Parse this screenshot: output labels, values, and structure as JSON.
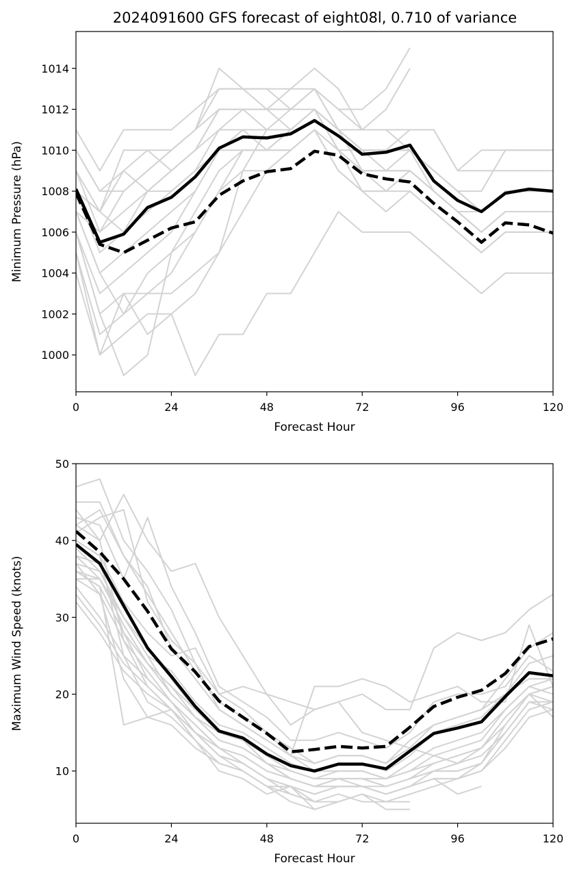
{
  "chart_data": [
    {
      "type": "line",
      "title": "2024091600 GFS forecast of eight08l, 0.710 of variance",
      "xlabel": "Forecast Hour",
      "ylabel": "Minimum Pressure (hPa)",
      "xlim": [
        0,
        120
      ],
      "ylim": [
        998.2,
        1015.8
      ],
      "xticks": [
        0,
        24,
        48,
        72,
        96,
        120
      ],
      "yticks": [
        1000,
        1002,
        1004,
        1006,
        1008,
        1010,
        1012,
        1014
      ],
      "grid": false,
      "colors": {
        "ensemble": "#d3d3d3",
        "solid": "#000000",
        "dashed": "#000000"
      },
      "x": [
        0,
        6,
        12,
        18,
        24,
        30,
        36,
        42,
        48,
        54,
        60,
        66,
        72,
        78,
        84,
        90,
        96,
        102,
        108,
        114,
        120
      ],
      "solid_series": [
        1008.1,
        1005.5,
        1005.9,
        1007.2,
        1007.7,
        1008.7,
        1010.1,
        1010.65,
        1010.6,
        1010.8,
        1011.45,
        1010.7,
        1009.8,
        1009.9,
        1010.25,
        1008.5,
        1007.55,
        1007.0,
        1007.9,
        1008.1,
        1008.0
      ],
      "dashed_series": [
        1007.9,
        1005.4,
        1005.0,
        1005.6,
        1006.2,
        1006.5,
        1007.8,
        1008.5,
        1008.95,
        1009.1,
        1009.95,
        1009.75,
        1008.85,
        1008.6,
        1008.45,
        1007.4,
        1006.5,
        1005.5,
        1006.45,
        1006.35,
        1005.95
      ],
      "ensemble": [
        [
          1011,
          1009,
          1011,
          1011,
          1011,
          1012,
          1013,
          1013,
          1013,
          1013,
          1013,
          1012,
          1012,
          1013,
          1015
        ],
        [
          1010,
          1008,
          1009,
          1010,
          1010,
          1011,
          1014,
          1013,
          1012,
          1012,
          1013,
          1012,
          1011,
          1012,
          1014
        ],
        [
          1009,
          1006,
          1008,
          1009,
          1010,
          1011,
          1012,
          1012,
          1012,
          1013,
          1014,
          1013,
          1011,
          1011,
          1011,
          1011,
          1009,
          1010,
          1010,
          1010,
          1010
        ],
        [
          1008,
          1007,
          1010,
          1010,
          1009,
          1010,
          1012,
          1012,
          1012,
          1012,
          1013,
          1011,
          1010,
          1010,
          1011,
          1011,
          1009,
          1009,
          1009,
          1009,
          1009
        ],
        [
          1010,
          1008,
          1008,
          1009,
          1010,
          1011,
          1013,
          1013,
          1013,
          1012,
          1012,
          1011,
          1011,
          1011,
          1010,
          1009,
          1008,
          1008,
          1010,
          1010,
          1010
        ],
        [
          1007,
          1006,
          1007,
          1008,
          1009,
          1010,
          1011,
          1012,
          1011,
          1011,
          1012,
          1011,
          1010,
          1010,
          1010,
          1009,
          1008,
          1007,
          1008,
          1008,
          1008
        ],
        [
          1008,
          1005,
          1006,
          1007,
          1008,
          1009,
          1010,
          1011,
          1011,
          1011,
          1012,
          1010,
          1010,
          1009,
          1009,
          1008,
          1007,
          1006,
          1007,
          1007,
          1007
        ],
        [
          1007,
          1004,
          1005,
          1006,
          1007,
          1008,
          1010,
          1010,
          1010,
          1010,
          1011,
          1010,
          1009,
          1009,
          1009,
          1008,
          1007,
          1006,
          1007,
          1007,
          1007
        ],
        [
          1006,
          1003,
          1004,
          1005,
          1006,
          1008,
          1010,
          1011,
          1010,
          1011,
          1012,
          1011,
          1010,
          1010,
          1010,
          1008,
          1007,
          1006,
          1007,
          1007,
          1007
        ],
        [
          1006,
          1002,
          1003,
          1003,
          1004,
          1006,
          1008,
          1010,
          1010,
          1010,
          1011,
          1009,
          1008,
          1008,
          1009,
          1008,
          1007,
          1006,
          1007,
          1007,
          1007
        ],
        [
          1007,
          1004,
          1002,
          1004,
          1005,
          1007,
          1009,
          1010,
          1010,
          1011,
          1012,
          1010,
          1009,
          1009,
          1009,
          1008,
          1007,
          1007,
          1008,
          1008,
          1008
        ],
        [
          1005,
          1001,
          1002,
          1003,
          1003,
          1004,
          1005,
          1009,
          1011,
          1012,
          1013,
          1011,
          1009,
          1009,
          1010,
          1009,
          1008,
          1007,
          1008,
          1008,
          1008
        ],
        [
          1004,
          1000,
          1001,
          1002,
          1002,
          999,
          1001,
          1001,
          1003,
          1003,
          1005,
          1007,
          1006,
          1006,
          1006,
          1005,
          1004,
          1003,
          1004,
          1004,
          1004
        ],
        [
          1005,
          1000,
          1003,
          1001,
          1002,
          1003,
          1005,
          1007,
          1009,
          1010,
          1011,
          1009,
          1008,
          1007,
          1008,
          1007,
          1006,
          1005,
          1006,
          1006,
          1006
        ],
        [
          1006,
          1002,
          999,
          1000,
          1005,
          1006,
          1008,
          1009,
          1009,
          1010,
          1011,
          1010,
          1008,
          1008,
          1008,
          1007,
          1006,
          1005,
          1006,
          1006,
          1006
        ],
        [
          1008,
          1007,
          1006,
          1008,
          1008,
          1009,
          1011,
          1011,
          1011,
          1011,
          1012,
          1010,
          1009,
          1008,
          1009,
          1008,
          1007,
          1006,
          1007,
          1007,
          1007
        ],
        [
          1009,
          1007,
          1009,
          1008,
          1009,
          1010,
          1012,
          1012,
          1012,
          1011,
          1012,
          1011,
          1010,
          1010,
          1010,
          1009,
          1008,
          1007,
          1008,
          1008,
          1008
        ]
      ]
    },
    {
      "type": "line",
      "title": "",
      "xlabel": "Forecast Hour",
      "ylabel": "Maximum Wind Speed (knots)",
      "xlim": [
        0,
        120
      ],
      "ylim": [
        3.2,
        50
      ],
      "xticks": [
        0,
        24,
        48,
        72,
        96,
        120
      ],
      "yticks": [
        10,
        20,
        30,
        40,
        50
      ],
      "grid": false,
      "colors": {
        "ensemble": "#d3d3d3",
        "solid": "#000000",
        "dashed": "#000000"
      },
      "x": [
        0,
        6,
        12,
        18,
        24,
        30,
        36,
        42,
        48,
        54,
        60,
        66,
        72,
        78,
        84,
        90,
        96,
        102,
        108,
        114,
        120
      ],
      "solid_series": [
        39.5,
        37,
        31.5,
        26,
        22.3,
        18.4,
        15.2,
        14.3,
        12.2,
        10.7,
        10,
        10.9,
        10.9,
        10.3,
        12.6,
        14.9,
        15.6,
        16.4,
        19.7,
        22.8,
        22.4
      ],
      "dashed_series": [
        41.2,
        38.5,
        35,
        30.8,
        25.9,
        22.9,
        19.1,
        17,
        14.9,
        12.5,
        12.8,
        13.2,
        13,
        13.2,
        15.7,
        18.4,
        19.6,
        20.5,
        22.7,
        26.2,
        27.2
      ],
      "ensemble": [
        [
          47,
          48,
          40,
          36,
          31,
          24,
          18,
          16,
          14,
          12,
          10,
          11,
          11,
          10,
          12,
          15,
          16,
          17,
          20,
          24,
          25
        ],
        [
          45,
          45,
          38,
          33,
          28,
          23,
          19,
          17,
          15,
          13,
          11,
          12,
          12,
          11,
          13,
          16,
          17,
          18,
          22,
          26,
          28
        ],
        [
          44,
          40,
          46,
          40,
          36,
          37,
          30,
          25,
          20,
          16,
          18,
          19,
          20,
          18,
          18,
          26,
          28,
          27,
          28,
          31,
          33
        ],
        [
          43,
          42,
          35,
          43,
          34,
          28,
          21,
          19,
          17,
          14,
          14,
          15,
          14,
          13,
          15,
          19,
          20,
          20,
          21,
          25,
          23
        ],
        [
          42,
          44,
          38,
          34,
          26,
          22,
          18,
          16,
          14,
          12,
          21,
          21,
          22,
          21,
          19,
          20,
          21,
          19,
          19,
          29,
          21
        ],
        [
          41,
          43,
          44,
          32,
          27,
          24,
          20,
          18,
          15,
          12,
          11,
          12,
          12,
          11,
          14,
          16,
          17,
          18,
          20,
          22,
          22
        ],
        [
          40,
          38,
          32,
          28,
          25,
          26,
          20,
          21,
          20,
          19,
          18,
          19,
          15,
          14,
          13,
          12,
          11,
          13,
          16,
          20,
          21
        ],
        [
          39,
          36,
          30,
          25,
          23,
          19,
          16,
          15,
          13,
          11,
          10,
          10,
          10,
          9,
          10,
          12,
          13,
          14,
          18,
          21,
          22
        ],
        [
          38,
          35,
          29,
          24,
          21,
          18,
          15,
          14,
          12,
          10,
          9,
          9,
          9,
          9,
          10,
          11,
          12,
          13,
          17,
          20,
          21
        ],
        [
          37,
          36,
          30,
          26,
          22,
          18,
          15,
          14,
          12,
          10,
          9,
          10,
          10,
          9,
          11,
          13,
          14,
          15,
          18,
          21,
          20
        ],
        [
          36,
          34,
          28,
          24,
          20,
          17,
          14,
          13,
          11,
          10,
          9,
          9,
          9,
          8,
          9,
          11,
          12,
          13,
          17,
          20,
          19
        ],
        [
          35,
          33,
          27,
          23,
          19,
          16,
          13,
          12,
          10,
          9,
          8,
          8,
          8,
          7,
          8,
          10,
          11,
          12,
          15,
          19,
          18
        ],
        [
          36,
          35,
          29,
          24,
          21,
          17,
          15,
          14,
          11,
          9,
          8,
          8,
          8,
          8,
          9,
          10,
          10,
          11,
          16,
          20,
          17
        ],
        [
          35,
          35,
          30,
          25,
          20,
          17,
          14,
          13,
          11,
          9,
          8,
          9,
          9,
          8,
          9,
          10,
          10,
          11,
          15,
          19,
          19
        ],
        [
          34,
          30,
          25,
          22,
          19,
          15,
          12,
          11,
          9,
          8,
          7,
          8,
          8,
          7,
          8,
          9,
          9,
          10,
          14,
          18,
          19
        ],
        [
          33,
          29,
          24,
          21,
          18,
          15,
          12,
          11,
          9,
          8,
          7,
          8,
          8,
          7,
          8,
          9,
          9,
          10,
          13,
          17,
          18
        ],
        [
          32,
          28,
          23,
          20,
          18,
          14,
          11,
          10,
          8,
          8,
          6,
          7,
          6,
          6,
          7,
          8,
          9,
          11
        ],
        [
          38,
          37,
          28,
          22,
          19,
          16,
          13,
          11,
          9,
          7,
          6,
          6,
          7,
          6,
          6
        ],
        [
          40,
          38,
          25,
          19,
          17,
          14,
          10,
          9,
          7,
          8,
          5,
          6,
          7,
          5,
          5
        ],
        [
          37,
          33,
          22,
          17,
          16,
          13,
          11,
          10,
          8,
          7,
          6
        ],
        [
          36,
          34,
          16,
          17,
          18,
          15,
          12,
          10,
          8,
          6,
          5,
          6
        ],
        [
          42,
          40,
          27,
          21,
          18,
          15,
          13,
          12,
          10,
          9,
          8,
          9,
          8,
          7,
          8,
          9,
          7,
          8
        ]
      ]
    }
  ]
}
